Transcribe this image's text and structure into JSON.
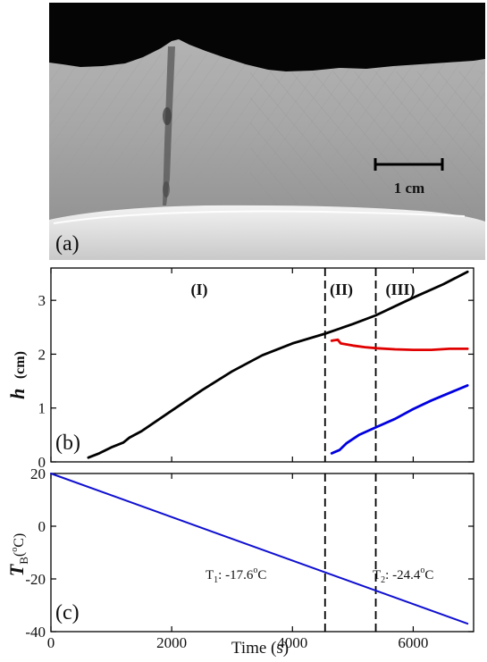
{
  "panel_a": {
    "label": "(a)",
    "scale_bar_label": "1 cm"
  },
  "chart_data": [
    {
      "type": "line",
      "panel_label": "(b)",
      "ylabel_symbol": "h",
      "ylabel_unit": "(cm)",
      "xlim": [
        0,
        7000
      ],
      "ylim": [
        0,
        3.6
      ],
      "x_ticks": [
        0,
        2000,
        4000,
        6000
      ],
      "y_ticks": [
        0,
        1,
        2,
        3
      ],
      "y_tick_labels": [
        "0",
        "1",
        "2",
        "3"
      ],
      "regions": [
        {
          "label": "(I)"
        },
        {
          "label": "(II)"
        },
        {
          "label": "(III)"
        }
      ],
      "dividers_x": [
        4540,
        5380
      ],
      "series": [
        {
          "color": "#000000",
          "x": [
            620,
            800,
            1000,
            1200,
            1300,
            1500,
            2000,
            2500,
            3000,
            3500,
            4000,
            4540,
            5000,
            5380,
            6000,
            6500,
            6900
          ],
          "y": [
            0.08,
            0.16,
            0.27,
            0.36,
            0.45,
            0.57,
            0.95,
            1.33,
            1.68,
            1.98,
            2.2,
            2.38,
            2.56,
            2.72,
            3.05,
            3.3,
            3.53
          ]
        },
        {
          "color": "#e00000",
          "x": [
            4650,
            4750,
            4800,
            5000,
            5200,
            5400,
            5700,
            6000,
            6300,
            6600,
            6900
          ],
          "y": [
            2.25,
            2.27,
            2.2,
            2.16,
            2.13,
            2.11,
            2.09,
            2.08,
            2.08,
            2.1,
            2.1
          ]
        },
        {
          "color": "#0000e0",
          "x": [
            4650,
            4780,
            4900,
            5100,
            5380,
            5700,
            6000,
            6300,
            6600,
            6900
          ],
          "y": [
            0.16,
            0.22,
            0.35,
            0.5,
            0.64,
            0.8,
            0.98,
            1.14,
            1.28,
            1.42
          ]
        }
      ]
    },
    {
      "type": "line",
      "panel_label": "(c)",
      "ylabel_symbol": "T",
      "ylabel_sub": "B",
      "ylabel_unit_open": "(",
      "ylabel_unit_sup": "o",
      "ylabel_unit_rest": "C)",
      "xlabel": "Time (s)",
      "xlim": [
        0,
        7000
      ],
      "ylim": [
        -40,
        20
      ],
      "x_ticks": [
        0,
        2000,
        4000,
        6000
      ],
      "x_tick_labels": [
        "0",
        "2000",
        "4000",
        "6000"
      ],
      "y_ticks": [
        -40,
        -20,
        0,
        20
      ],
      "y_tick_labels": [
        "-40",
        "-20",
        "0",
        "20"
      ],
      "dividers_x": [
        4540,
        5380
      ],
      "annotations": [
        {
          "label": "T",
          "sub": "1",
          "value": ": -17.6",
          "sup": "o",
          "unit": "C"
        },
        {
          "label": "T",
          "sub": "2",
          "value": ": -24.4",
          "sup": "o",
          "unit": "C"
        }
      ],
      "series": [
        {
          "color": "#1010d0",
          "x": [
            0,
            6900
          ],
          "y": [
            20,
            -37
          ]
        }
      ]
    }
  ]
}
